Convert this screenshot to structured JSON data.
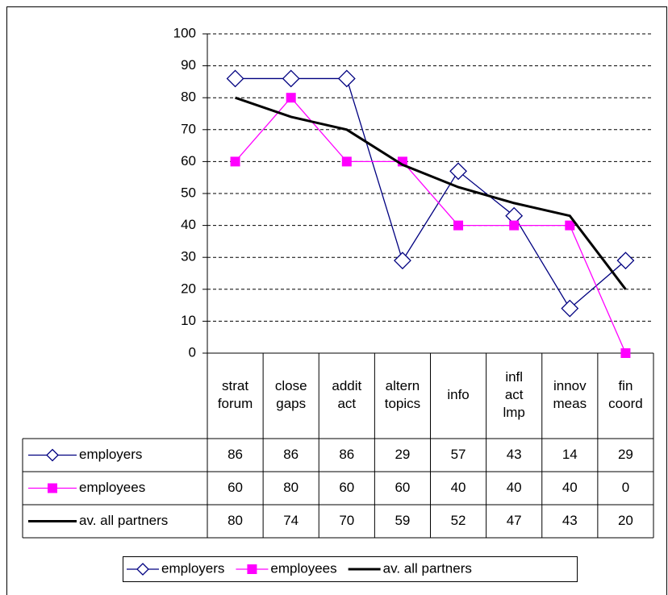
{
  "chart_data": {
    "type": "line",
    "categories": [
      "strat forum",
      "close gaps",
      "addit act",
      "altern topics",
      "info",
      "infl act lmp",
      "innov meas",
      "fin coord"
    ],
    "series": [
      {
        "name": "employers",
        "color": "#000080",
        "marker": "diamond",
        "values": [
          86,
          86,
          86,
          29,
          57,
          43,
          14,
          29
        ]
      },
      {
        "name": "employees",
        "color": "#ff00ff",
        "marker": "square",
        "values": [
          60,
          80,
          60,
          60,
          40,
          40,
          40,
          0
        ]
      },
      {
        "name": "av. all partners",
        "color": "#000000",
        "marker": "none",
        "values": [
          80,
          74,
          70,
          59,
          52,
          47,
          43,
          20
        ]
      }
    ],
    "ylim": [
      0,
      100
    ],
    "yticks": [
      0,
      10,
      20,
      30,
      40,
      50,
      60,
      70,
      80,
      90,
      100
    ],
    "grid": true,
    "legend": "bottom",
    "data_table": true
  }
}
